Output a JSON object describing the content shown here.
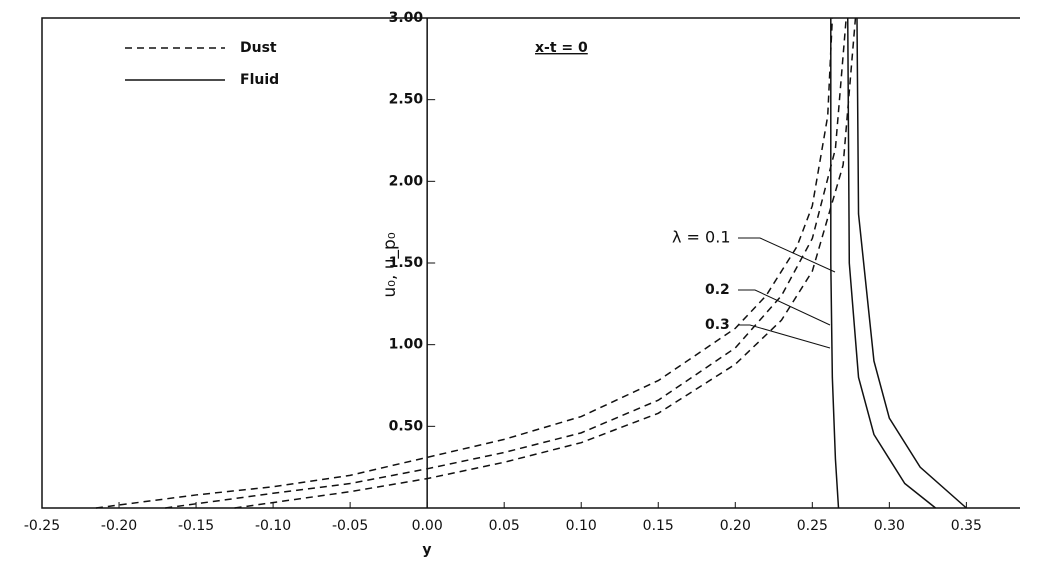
{
  "chart_data": {
    "type": "line",
    "x_label": "y",
    "y_label": "u₀, u_p₀",
    "annotations": [
      "x-t = 0",
      "λ = 0.1",
      "0.2",
      "0.3"
    ],
    "xlim": [
      -0.25,
      0.39
    ],
    "ylim": [
      0,
      3
    ],
    "xticks": [
      {
        "value": -0.25,
        "label": "-0.25"
      },
      {
        "value": -0.2,
        "label": "-0.20"
      },
      {
        "value": -0.15,
        "label": "-0.15"
      },
      {
        "value": -0.1,
        "label": "-0.10"
      },
      {
        "value": -0.05,
        "label": "-0.05"
      },
      {
        "value": 0,
        "label": "0.00"
      },
      {
        "value": 0.05,
        "label": "0.05"
      },
      {
        "value": 0.1,
        "label": "0.10"
      },
      {
        "value": 0.15,
        "label": "0.15"
      },
      {
        "value": 0.2,
        "label": "0.20"
      },
      {
        "value": 0.25,
        "label": "0.25"
      },
      {
        "value": 0.3,
        "label": "0.30"
      },
      {
        "value": 0.35,
        "label": "0.35"
      }
    ],
    "yticks": [
      {
        "value": 0.5,
        "label": "0.50"
      },
      {
        "value": 1,
        "label": "1.00"
      },
      {
        "value": 1.5,
        "label": "1.50"
      },
      {
        "value": 2,
        "label": "2.00"
      },
      {
        "value": 2.5,
        "label": "2.50"
      },
      {
        "value": 3,
        "label": "3.00"
      }
    ],
    "series": [
      {
        "name": "Dust",
        "style": "dashed",
        "color": "#111",
        "lines": [
          {
            "x": [
              -0.215,
              -0.15,
              -0.1,
              -0.05,
              0,
              0.05,
              0.1,
              0.15,
              0.2,
              0.22,
              0.24,
              0.25,
              0.26,
              0.263
            ],
            "values": [
              0,
              0.08,
              0.13,
              0.2,
              0.31,
              0.42,
              0.56,
              0.78,
              1.1,
              1.3,
              1.6,
              1.85,
              2.4,
              3.0
            ]
          },
          {
            "x": [
              -0.17,
              -0.1,
              -0.05,
              0,
              0.05,
              0.1,
              0.15,
              0.2,
              0.23,
              0.25,
              0.265,
              0.272
            ],
            "values": [
              0,
              0.09,
              0.15,
              0.24,
              0.34,
              0.46,
              0.66,
              0.98,
              1.3,
              1.65,
              2.2,
              3.0
            ]
          },
          {
            "x": [
              -0.125,
              -0.05,
              0,
              0.05,
              0.1,
              0.15,
              0.2,
              0.23,
              0.25,
              0.27,
              0.278
            ],
            "values": [
              0,
              0.1,
              0.18,
              0.28,
              0.4,
              0.58,
              0.88,
              1.15,
              1.45,
              2.1,
              3.0
            ]
          }
        ]
      },
      {
        "name": "Fluid",
        "style": "solid",
        "color": "#111",
        "lines": [
          {
            "x": [
              0.262,
              0.262,
              0.263,
              0.265,
              0.267
            ],
            "values": [
              3.0,
              1.5,
              0.8,
              0.3,
              0
            ]
          },
          {
            "x": [
              0.273,
              0.274,
              0.28,
              0.29,
              0.31,
              0.33
            ],
            "values": [
              3.0,
              1.5,
              0.8,
              0.45,
              0.15,
              0
            ]
          },
          {
            "x": [
              0.279,
              0.28,
              0.29,
              0.3,
              0.32,
              0.35
            ],
            "values": [
              3.0,
              1.8,
              0.9,
              0.55,
              0.25,
              0
            ]
          }
        ]
      }
    ]
  }
}
